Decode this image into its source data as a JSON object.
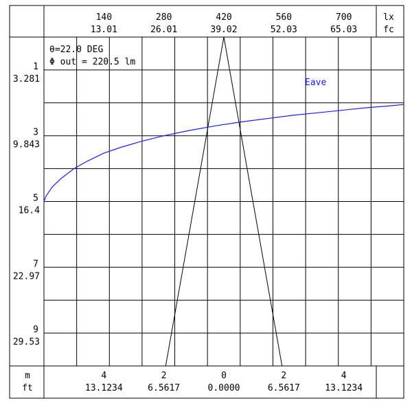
{
  "chart_data": {
    "type": "line",
    "top_axis": {
      "units": [
        "lx",
        "fc"
      ],
      "ticks": [
        {
          "lx": "140",
          "fc": "13.01"
        },
        {
          "lx": "280",
          "fc": "26.01"
        },
        {
          "lx": "420",
          "fc": "39.02"
        },
        {
          "lx": "560",
          "fc": "52.03"
        },
        {
          "lx": "700",
          "fc": "65.03"
        }
      ],
      "range_lx": [
        0,
        840
      ]
    },
    "left_axis": {
      "ticks": [
        {
          "m": "1",
          "ft": "3.281"
        },
        {
          "m": "3",
          "ft": "9.843"
        },
        {
          "m": "5",
          "ft": "16.4"
        },
        {
          "m": "7",
          "ft": "22.97"
        },
        {
          "m": "9",
          "ft": "29.53"
        }
      ],
      "range_m": [
        0,
        10
      ]
    },
    "bottom_axis": {
      "units": [
        "m",
        "ft"
      ],
      "ticks": [
        {
          "m": "4",
          "ft": "13.1234",
          "value": -4
        },
        {
          "m": "2",
          "ft": "6.5617",
          "value": -2
        },
        {
          "m": "0",
          "ft": "0.0000",
          "value": 0
        },
        {
          "m": "2",
          "ft": "6.5617",
          "value": 2
        },
        {
          "m": "4",
          "ft": "13.1234",
          "value": 4
        }
      ],
      "range_m": [
        -6,
        6
      ]
    },
    "annotations": {
      "theta": "θ=22.0 DEG",
      "flux": "Φ out = 220.5 lm"
    },
    "beam": {
      "apex": [
        0,
        0
      ],
      "left_edge_at_bottom": -1.94,
      "right_edge_at_bottom": 1.94,
      "bottom_m": 10
    },
    "series": [
      {
        "name": "Eave",
        "color": "#1a1aff",
        "axis": "illuminance_lx_vs_distance_m",
        "points": [
          [
            0,
            5.0
          ],
          [
            5,
            4.83
          ],
          [
            20,
            4.55
          ],
          [
            40,
            4.3
          ],
          [
            70,
            4.0
          ],
          [
            100,
            3.78
          ],
          [
            140,
            3.53
          ],
          [
            180,
            3.35
          ],
          [
            230,
            3.16
          ],
          [
            280,
            3.0
          ],
          [
            340,
            2.84
          ],
          [
            400,
            2.7
          ],
          [
            460,
            2.58
          ],
          [
            520,
            2.48
          ],
          [
            580,
            2.38
          ],
          [
            640,
            2.3
          ],
          [
            700,
            2.22
          ],
          [
            760,
            2.14
          ],
          [
            800,
            2.1
          ],
          [
            840,
            2.05
          ]
        ]
      }
    ]
  }
}
